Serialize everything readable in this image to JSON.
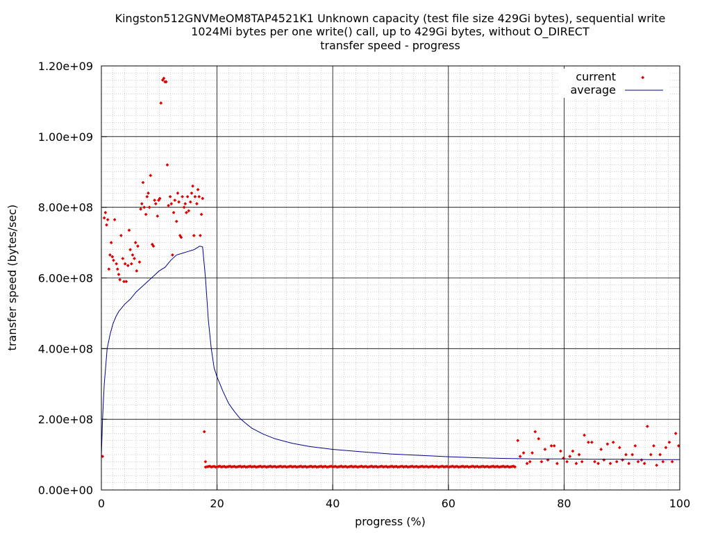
{
  "chart_data": {
    "type": "scatter",
    "title": [
      "Kingston512GNVMeOM8TAP4521K1 Unknown capacity (test file size 429Gi bytes), sequential write",
      "1024Mi bytes per one write() call, up to 429Gi bytes, without O_DIRECT",
      "transfer speed - progress"
    ],
    "xlabel": "progress (%)",
    "ylabel": "transfer speed (bytes/sec)",
    "xlim": [
      0,
      100
    ],
    "ylim": [
      0,
      1200000000
    ],
    "x_ticks": [
      "0",
      "20",
      "40",
      "60",
      "80",
      "100"
    ],
    "y_ticks": [
      "0.00e+00",
      "2.00e+08",
      "4.00e+08",
      "6.00e+08",
      "8.00e+08",
      "1.00e+09",
      "1.20e+09"
    ],
    "grid": true,
    "legend_position": "top-right",
    "colors": {
      "current": "#e00000",
      "average": "#00008b"
    },
    "series": [
      {
        "name": "current",
        "style": "points",
        "points": [
          [
            0.2,
            95000000
          ],
          [
            0.5,
            770000000
          ],
          [
            0.7,
            785000000
          ],
          [
            0.9,
            750000000
          ],
          [
            1.1,
            765000000
          ],
          [
            1.3,
            625000000
          ],
          [
            1.5,
            665000000
          ],
          [
            1.7,
            700000000
          ],
          [
            1.9,
            660000000
          ],
          [
            2.1,
            650000000
          ],
          [
            2.3,
            765000000
          ],
          [
            2.6,
            640000000
          ],
          [
            2.8,
            625000000
          ],
          [
            3.0,
            610000000
          ],
          [
            3.2,
            595000000
          ],
          [
            3.4,
            720000000
          ],
          [
            3.7,
            655000000
          ],
          [
            3.9,
            590000000
          ],
          [
            4.1,
            640000000
          ],
          [
            4.3,
            590000000
          ],
          [
            4.6,
            635000000
          ],
          [
            4.8,
            735000000
          ],
          [
            5.0,
            680000000
          ],
          [
            5.2,
            640000000
          ],
          [
            5.4,
            665000000
          ],
          [
            5.7,
            655000000
          ],
          [
            5.9,
            700000000
          ],
          [
            6.1,
            620000000
          ],
          [
            6.3,
            690000000
          ],
          [
            6.6,
            645000000
          ],
          [
            6.8,
            795000000
          ],
          [
            7.0,
            810000000
          ],
          [
            7.2,
            870000000
          ],
          [
            7.4,
            800000000
          ],
          [
            7.7,
            780000000
          ],
          [
            7.9,
            830000000
          ],
          [
            8.1,
            840000000
          ],
          [
            8.3,
            800000000
          ],
          [
            8.5,
            890000000
          ],
          [
            8.8,
            695000000
          ],
          [
            9.0,
            690000000
          ],
          [
            9.2,
            820000000
          ],
          [
            9.4,
            810000000
          ],
          [
            9.7,
            775000000
          ],
          [
            9.9,
            820000000
          ],
          [
            10.1,
            825000000
          ],
          [
            10.3,
            1095000000
          ],
          [
            10.6,
            1160000000
          ],
          [
            10.8,
            1165000000
          ],
          [
            11.0,
            1155000000
          ],
          [
            11.2,
            1155000000
          ],
          [
            11.4,
            920000000
          ],
          [
            11.6,
            805000000
          ],
          [
            11.9,
            830000000
          ],
          [
            12.1,
            810000000
          ],
          [
            12.3,
            665000000
          ],
          [
            12.5,
            785000000
          ],
          [
            12.7,
            820000000
          ],
          [
            13.0,
            760000000
          ],
          [
            13.2,
            840000000
          ],
          [
            13.4,
            815000000
          ],
          [
            13.6,
            720000000
          ],
          [
            13.8,
            715000000
          ],
          [
            14.0,
            830000000
          ],
          [
            14.3,
            800000000
          ],
          [
            14.5,
            810000000
          ],
          [
            14.7,
            785000000
          ],
          [
            14.9,
            830000000
          ],
          [
            15.1,
            790000000
          ],
          [
            15.4,
            815000000
          ],
          [
            15.6,
            840000000
          ],
          [
            15.8,
            860000000
          ],
          [
            16.0,
            720000000
          ],
          [
            16.2,
            830000000
          ],
          [
            16.5,
            810000000
          ],
          [
            16.7,
            850000000
          ],
          [
            16.9,
            830000000
          ],
          [
            17.1,
            720000000
          ],
          [
            17.3,
            780000000
          ],
          [
            17.5,
            825000000
          ],
          [
            17.8,
            165000000
          ],
          [
            18.0,
            80000000
          ],
          [
            72.0,
            140000000
          ],
          [
            72.4,
            95000000
          ],
          [
            73.0,
            105000000
          ],
          [
            73.6,
            75000000
          ],
          [
            74.1,
            80000000
          ],
          [
            74.5,
            105000000
          ],
          [
            75.0,
            165000000
          ],
          [
            75.6,
            145000000
          ],
          [
            76.1,
            80000000
          ],
          [
            76.7,
            115000000
          ],
          [
            77.2,
            85000000
          ],
          [
            77.8,
            125000000
          ],
          [
            78.3,
            125000000
          ],
          [
            78.8,
            75000000
          ],
          [
            79.4,
            110000000
          ],
          [
            79.9,
            90000000
          ],
          [
            80.5,
            80000000
          ],
          [
            81.0,
            95000000
          ],
          [
            81.5,
            110000000
          ],
          [
            82.1,
            75000000
          ],
          [
            82.6,
            100000000
          ],
          [
            83.1,
            80000000
          ],
          [
            83.5,
            155000000
          ],
          [
            84.2,
            135000000
          ],
          [
            84.8,
            135000000
          ],
          [
            85.3,
            80000000
          ],
          [
            85.9,
            75000000
          ],
          [
            86.4,
            115000000
          ],
          [
            86.9,
            85000000
          ],
          [
            87.5,
            130000000
          ],
          [
            88.0,
            75000000
          ],
          [
            88.5,
            135000000
          ],
          [
            89.1,
            80000000
          ],
          [
            89.6,
            120000000
          ],
          [
            90.1,
            85000000
          ],
          [
            90.7,
            100000000
          ],
          [
            91.2,
            75000000
          ],
          [
            91.8,
            100000000
          ],
          [
            92.3,
            125000000
          ],
          [
            92.8,
            80000000
          ],
          [
            93.4,
            85000000
          ],
          [
            93.9,
            75000000
          ],
          [
            94.4,
            180000000
          ],
          [
            95.0,
            100000000
          ],
          [
            95.5,
            125000000
          ],
          [
            96.0,
            70000000
          ],
          [
            96.6,
            100000000
          ],
          [
            97.1,
            80000000
          ],
          [
            97.6,
            120000000
          ],
          [
            98.2,
            135000000
          ],
          [
            98.7,
            80000000
          ],
          [
            99.3,
            160000000
          ],
          [
            99.8,
            125000000
          ]
        ],
        "band": {
          "x_start": 18.0,
          "x_end": 71.5,
          "y": 66000000,
          "step": 0.25
        }
      },
      {
        "name": "average",
        "style": "line",
        "points": [
          [
            0.0,
            95000000
          ],
          [
            0.2,
            200000000
          ],
          [
            0.5,
            300000000
          ],
          [
            1.0,
            400000000
          ],
          [
            1.5,
            440000000
          ],
          [
            2.0,
            470000000
          ],
          [
            2.5,
            490000000
          ],
          [
            3.0,
            505000000
          ],
          [
            3.5,
            515000000
          ],
          [
            4.0,
            525000000
          ],
          [
            5.0,
            540000000
          ],
          [
            6.0,
            560000000
          ],
          [
            7.0,
            575000000
          ],
          [
            8.0,
            590000000
          ],
          [
            9.0,
            605000000
          ],
          [
            10.0,
            620000000
          ],
          [
            11.0,
            630000000
          ],
          [
            12.0,
            650000000
          ],
          [
            13.0,
            665000000
          ],
          [
            14.0,
            670000000
          ],
          [
            15.0,
            675000000
          ],
          [
            16.0,
            680000000
          ],
          [
            17.0,
            690000000
          ],
          [
            17.5,
            688000000
          ],
          [
            18.0,
            600000000
          ],
          [
            18.5,
            480000000
          ],
          [
            19.0,
            400000000
          ],
          [
            19.5,
            345000000
          ],
          [
            20.0,
            320000000
          ],
          [
            21.0,
            280000000
          ],
          [
            22.0,
            245000000
          ],
          [
            23.0,
            222000000
          ],
          [
            24.0,
            202000000
          ],
          [
            25.0,
            188000000
          ],
          [
            26.0,
            175000000
          ],
          [
            28.0,
            158000000
          ],
          [
            30.0,
            145000000
          ],
          [
            33.0,
            132000000
          ],
          [
            36.0,
            123000000
          ],
          [
            40.0,
            115000000
          ],
          [
            45.0,
            108000000
          ],
          [
            50.0,
            102000000
          ],
          [
            55.0,
            98000000
          ],
          [
            60.0,
            94000000
          ],
          [
            65.0,
            91000000
          ],
          [
            70.0,
            89000000
          ],
          [
            75.0,
            88000000
          ],
          [
            80.0,
            88000000
          ],
          [
            85.0,
            87000000
          ],
          [
            90.0,
            87000000
          ],
          [
            95.0,
            86000000
          ],
          [
            100.0,
            86000000
          ]
        ]
      }
    ]
  }
}
